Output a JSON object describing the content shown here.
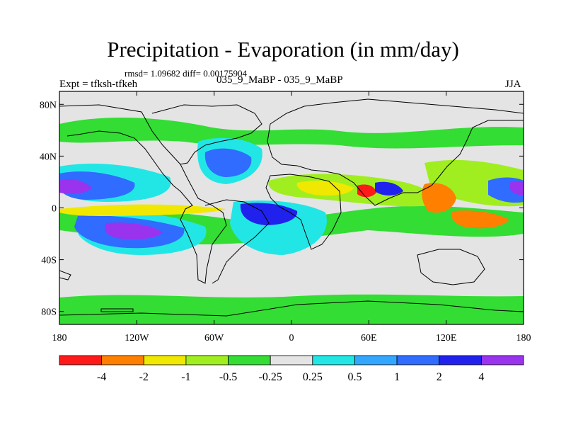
{
  "header": {
    "title": "Precipitation - Evaporation (in mm/day)",
    "stats": "rmsd= 1.09682 diff= 0.00175904",
    "expt": "Expt = tfksh-tfkeh",
    "case_id": "035_9_MaBP - 035_9_MaBP",
    "season": "JJA"
  },
  "map": {
    "projection": "cylindrical-equidistant",
    "lon_range": [
      -180,
      180
    ],
    "lat_range": [
      -90,
      90
    ],
    "x_ticks": [
      {
        "lon": -180,
        "label": "180"
      },
      {
        "lon": -120,
        "label": "120W"
      },
      {
        "lon": -60,
        "label": "60W"
      },
      {
        "lon": 0,
        "label": "0"
      },
      {
        "lon": 60,
        "label": "60E"
      },
      {
        "lon": 120,
        "label": "120E"
      },
      {
        "lon": 180,
        "label": "180"
      }
    ],
    "y_ticks": [
      {
        "lat": 80,
        "label": "80N"
      },
      {
        "lat": 40,
        "label": "40N"
      },
      {
        "lat": 0,
        "label": "0"
      },
      {
        "lat": -40,
        "label": "40S"
      },
      {
        "lat": -80,
        "label": "80S"
      }
    ]
  },
  "colorbar": {
    "colors": [
      "#ff1a1a",
      "#ff7f00",
      "#f0e800",
      "#a0ee20",
      "#33dd33",
      "#e4e4e4",
      "#22e6e6",
      "#33a6ff",
      "#2f6cff",
      "#2121ee",
      "#9933ee"
    ],
    "labels": [
      "-4",
      "-2",
      "-1",
      "-0.5",
      "-0.25",
      "0.25",
      "0.5",
      "1",
      "2",
      "4"
    ]
  }
}
